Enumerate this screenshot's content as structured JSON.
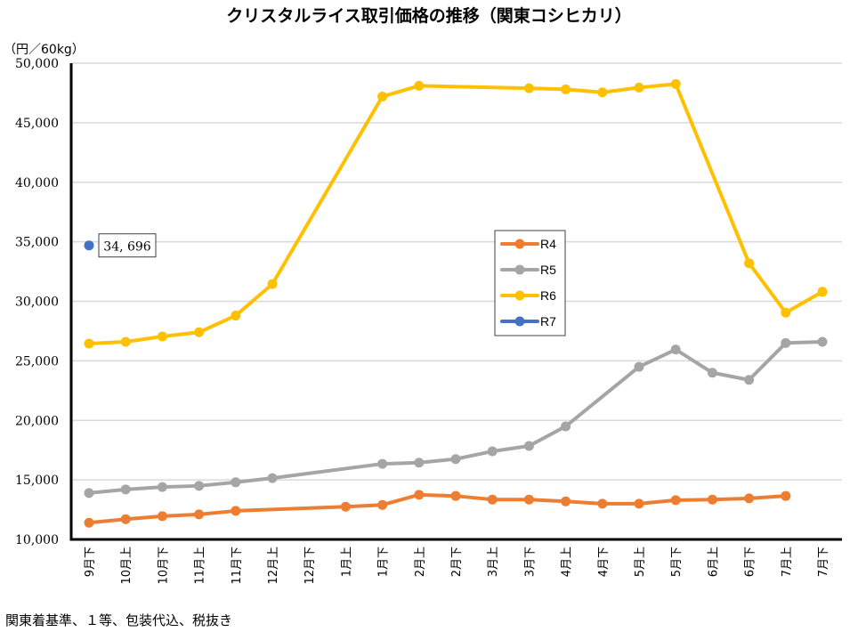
{
  "chart_data": {
    "type": "line",
    "title": "クリスタルライス取引価格の推移（関東コシヒカリ）",
    "ylabel": "（円／60kg）",
    "xlabel": "",
    "ylim": [
      10000,
      50000
    ],
    "yticks": [
      10000,
      15000,
      20000,
      25000,
      30000,
      35000,
      40000,
      45000,
      50000
    ],
    "ytick_labels": [
      "10,000",
      "15,000",
      "20,000",
      "25,000",
      "30,000",
      "35,000",
      "40,000",
      "45,000",
      "50,000"
    ],
    "grid": true,
    "legend_position": "center-right",
    "categories": [
      "9月下",
      "10月上",
      "10月下",
      "11月上",
      "11月下",
      "12月上",
      "12月下",
      "1月上",
      "1月下",
      "2月上",
      "2月下",
      "3月上",
      "3月下",
      "4月上",
      "4月下",
      "5月上",
      "5月下",
      "6月上",
      "6月下",
      "7月上",
      "7月下"
    ],
    "series": [
      {
        "name": "R4",
        "color": "#ED7D31",
        "values": [
          11400,
          11700,
          11950,
          12100,
          12400,
          null,
          null,
          12750,
          12900,
          13750,
          13650,
          13350,
          13350,
          13200,
          13000,
          13000,
          13300,
          13350,
          13450,
          13650,
          null
        ]
      },
      {
        "name": "R5",
        "color": "#A5A5A5",
        "values": [
          13900,
          14200,
          14400,
          14500,
          14800,
          15150,
          null,
          null,
          16350,
          16450,
          16750,
          17400,
          17850,
          19500,
          null,
          24500,
          25950,
          24000,
          23400,
          26500,
          26600
        ]
      },
      {
        "name": "R6",
        "color": "#FFC000",
        "values": [
          26450,
          26600,
          27050,
          27400,
          28800,
          31450,
          null,
          null,
          47200,
          48100,
          null,
          null,
          47900,
          47800,
          47550,
          47950,
          48250,
          null,
          33200,
          29050,
          30800
        ]
      },
      {
        "name": "R7",
        "color": "#4472C4",
        "values": [
          34696,
          null,
          null,
          null,
          null,
          null,
          null,
          null,
          null,
          null,
          null,
          null,
          null,
          null,
          null,
          null,
          null,
          null,
          null,
          null,
          null
        ]
      }
    ],
    "annotations": [
      {
        "series": "R7",
        "category": "9月下",
        "text": "34, 696"
      }
    ]
  },
  "footnote": "関東着基準、１等、包装代込、税抜き"
}
